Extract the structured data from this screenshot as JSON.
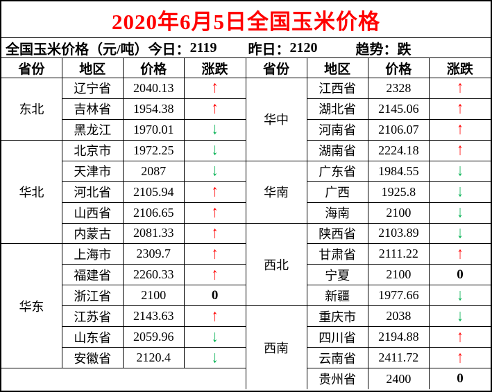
{
  "title": "2020年6月5日全国玉米价格",
  "summary": {
    "prefix": "全国玉米价格（元/吨）",
    "today_label": "今日：",
    "today_value": "2119",
    "yesterday_label": "昨日：",
    "yesterday_value": "2120",
    "trend_label": "趋势：",
    "trend_value": "跌"
  },
  "change_icons": {
    "up": "↑",
    "down": "↓",
    "zero": "0"
  },
  "colors": {
    "up": "#ff0000",
    "down": "#00b050",
    "zero": "#000000",
    "title": "#ff0000",
    "border": "#000000",
    "background": "#ffffff"
  },
  "left_table": {
    "headers": {
      "province": "省份",
      "area": "地区",
      "price": "价格",
      "change": "涨跌"
    },
    "regions": [
      {
        "name": "东北",
        "rows": [
          {
            "area": "辽宁省",
            "price": "2040.13",
            "change": "up"
          },
          {
            "area": "吉林省",
            "price": "1954.38",
            "change": "up"
          },
          {
            "area": "黑龙江",
            "price": "1970.01",
            "change": "down"
          }
        ]
      },
      {
        "name": "华北",
        "rows": [
          {
            "area": "北京市",
            "price": "1972.25",
            "change": "down"
          },
          {
            "area": "天津市",
            "price": "2087",
            "change": "down"
          },
          {
            "area": "河北省",
            "price": "2105.94",
            "change": "up"
          },
          {
            "area": "山西省",
            "price": "2106.65",
            "change": "up"
          },
          {
            "area": "内蒙古",
            "price": "2081.33",
            "change": "up"
          }
        ]
      },
      {
        "name": "华东",
        "rows": [
          {
            "area": "上海市",
            "price": "2309.7",
            "change": "up"
          },
          {
            "area": "福建省",
            "price": "2260.33",
            "change": "up"
          },
          {
            "area": "浙江省",
            "price": "2100",
            "change": "zero"
          },
          {
            "area": "江苏省",
            "price": "2143.63",
            "change": "up"
          },
          {
            "area": "山东省",
            "price": "2059.96",
            "change": "down"
          },
          {
            "area": "安徽省",
            "price": "2120.4",
            "change": "down"
          }
        ]
      }
    ]
  },
  "right_table": {
    "headers": {
      "province": "省份",
      "area": "地区",
      "price": "价格",
      "change": "涨跌"
    },
    "regions": [
      {
        "name": "华中",
        "rows": [
          {
            "area": "江西省",
            "price": "2328",
            "change": "up"
          },
          {
            "area": "湖北省",
            "price": "2145.06",
            "change": "up"
          },
          {
            "area": "河南省",
            "price": "2106.07",
            "change": "up"
          },
          {
            "area": "湖南省",
            "price": "2224.18",
            "change": "up"
          }
        ]
      },
      {
        "name": "华南",
        "rows": [
          {
            "area": "广东省",
            "price": "1984.55",
            "change": "down"
          },
          {
            "area": "广西",
            "price": "1925.8",
            "change": "down"
          },
          {
            "area": "海南",
            "price": "2100",
            "change": "down"
          }
        ]
      },
      {
        "name": "西北",
        "rows": [
          {
            "area": "陕西省",
            "price": "2103.89",
            "change": "down"
          },
          {
            "area": "甘肃省",
            "price": "2111.22",
            "change": "up"
          },
          {
            "area": "宁夏",
            "price": "2100",
            "change": "zero"
          },
          {
            "area": "新疆",
            "price": "1977.66",
            "change": "down"
          }
        ]
      },
      {
        "name": "西南",
        "rows": [
          {
            "area": "重庆市",
            "price": "2038",
            "change": "down"
          },
          {
            "area": "四川省",
            "price": "2194.88",
            "change": "up"
          },
          {
            "area": "云南省",
            "price": "2411.72",
            "change": "up"
          },
          {
            "area": "贵州省",
            "price": "2400",
            "change": "zero"
          }
        ]
      }
    ]
  }
}
